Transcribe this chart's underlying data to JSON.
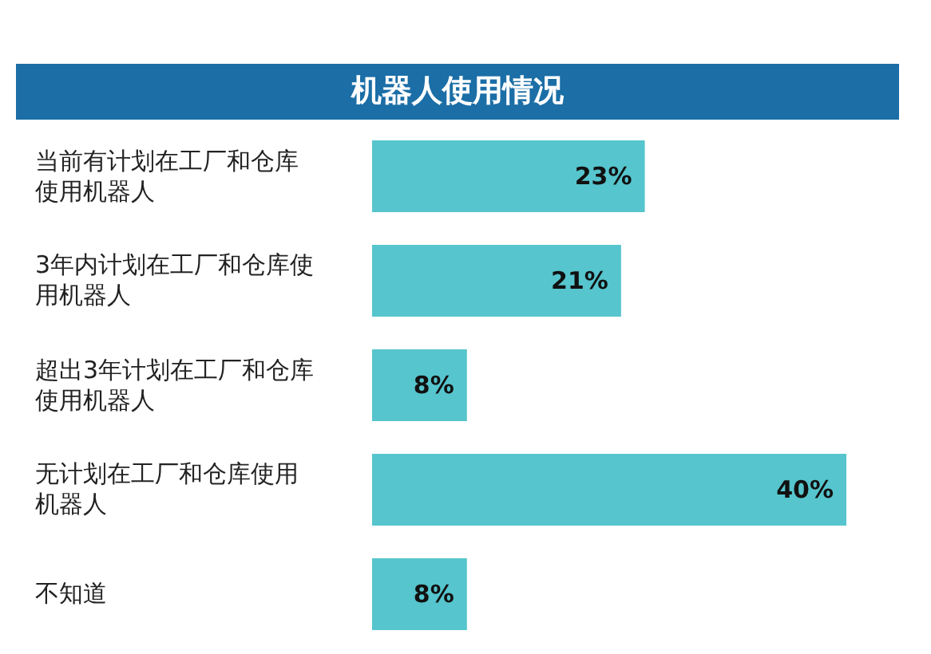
{
  "chart_data": {
    "type": "bar",
    "orientation": "horizontal",
    "title": "机器人使用情况",
    "categories": [
      "当前有计划在工厂和仓库使用机器人",
      "3年内计划在工厂和仓库使用机器人",
      "超出3年计划在工厂和仓库使用机器人",
      "无计划在工厂和仓库使用机器人",
      "不知道"
    ],
    "values": [
      23,
      21,
      8,
      40,
      8
    ],
    "value_labels": [
      "23%",
      "21%",
      "8%",
      "40%",
      "8%"
    ],
    "color": "#56c5cd"
  }
}
